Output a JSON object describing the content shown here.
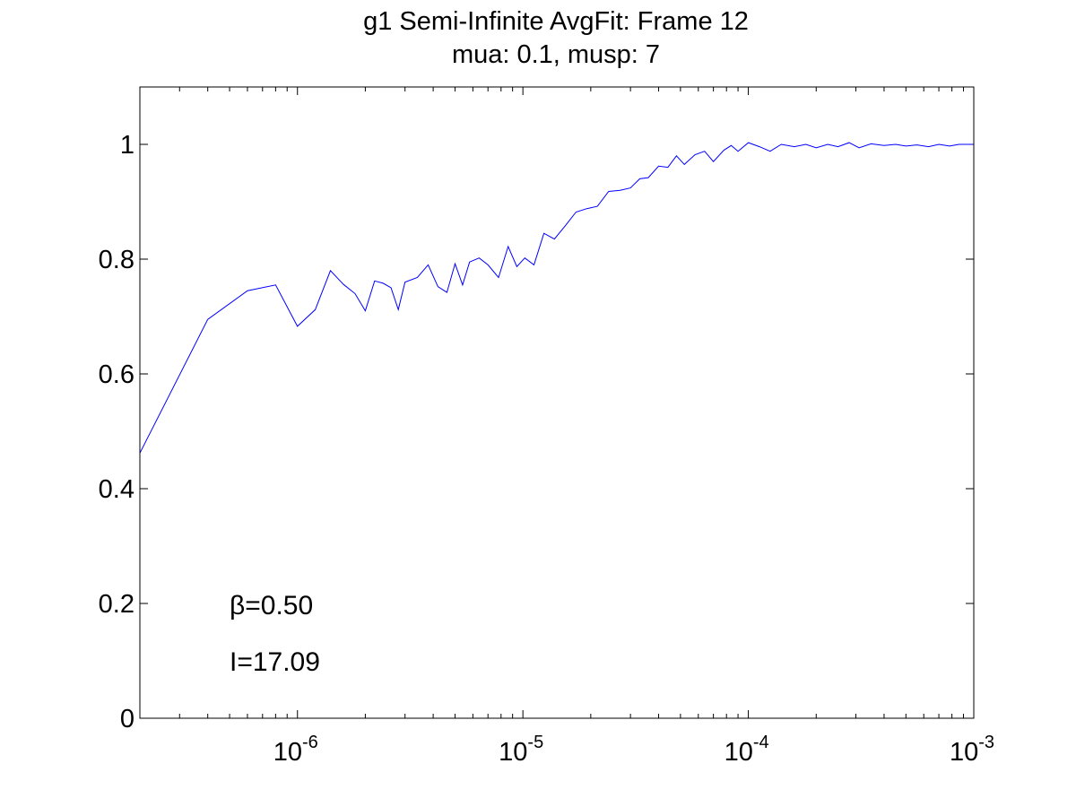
{
  "chart_data": {
    "type": "line",
    "title": "g1 Semi-Infinite AvgFit: Frame 12",
    "subtitle": "mua: 0.1, musp: 7",
    "xlabel": "",
    "ylabel": "",
    "xscale": "log",
    "xlim": [
      2e-07,
      0.001
    ],
    "ylim": [
      0,
      1.1
    ],
    "grid": false,
    "legend": "none",
    "line_color": "#0000ff",
    "x_ticks": [
      {
        "value": 1e-06,
        "base": "10",
        "exp": "-6"
      },
      {
        "value": 1e-05,
        "base": "10",
        "exp": "-5"
      },
      {
        "value": 0.0001,
        "base": "10",
        "exp": "-4"
      },
      {
        "value": 0.001,
        "base": "10",
        "exp": "-3"
      }
    ],
    "y_ticks": [
      {
        "value": 0,
        "label": "0"
      },
      {
        "value": 0.2,
        "label": "0.2"
      },
      {
        "value": 0.4,
        "label": "0.4"
      },
      {
        "value": 0.6,
        "label": "0.6"
      },
      {
        "value": 0.8,
        "label": "0.8"
      },
      {
        "value": 1,
        "label": "1"
      }
    ],
    "annotations": {
      "beta": {
        "symbol": "β",
        "text": "=0.50"
      },
      "intensity": {
        "text": "I=17.09"
      }
    },
    "series": [
      {
        "x": [
          2e-07,
          4e-07,
          6e-07,
          8e-07,
          1e-06,
          1.2e-06,
          1.4e-06,
          1.6e-06,
          1.8e-06,
          2e-06,
          2.2e-06,
          2.4e-06,
          2.6e-06,
          2.8e-06,
          3e-06,
          3.4e-06,
          3.8e-06,
          4.2e-06,
          4.6e-06,
          5e-06,
          5.4e-06,
          5.8e-06,
          6.4e-06,
          7e-06,
          7.8e-06,
          8.6e-06,
          9.4e-06,
          1.02e-05,
          1.12e-05,
          1.24e-05,
          1.38e-05,
          1.54e-05,
          1.72e-05,
          1.92e-05,
          2.14e-05,
          2.4e-05,
          2.7e-05,
          3e-05,
          3.3e-05,
          3.6e-05,
          4e-05,
          4.4e-05,
          4.8e-05,
          5.2e-05,
          5.8e-05,
          6.4e-05,
          7e-05,
          7.8e-05,
          8.4e-05,
          9e-05,
          0.0001,
          0.000112,
          0.000125,
          0.00014,
          0.00016,
          0.00018,
          0.0002,
          0.000225,
          0.00025,
          0.00028,
          0.00031,
          0.00035,
          0.0004,
          0.00045,
          0.0005,
          0.00056,
          0.00063,
          0.0007,
          0.00078,
          0.00086,
          0.001
        ],
        "y": [
          0.462,
          0.695,
          0.745,
          0.755,
          0.683,
          0.712,
          0.78,
          0.756,
          0.74,
          0.71,
          0.762,
          0.758,
          0.75,
          0.712,
          0.76,
          0.768,
          0.79,
          0.752,
          0.742,
          0.792,
          0.755,
          0.795,
          0.802,
          0.79,
          0.768,
          0.822,
          0.787,
          0.802,
          0.79,
          0.845,
          0.835,
          0.858,
          0.882,
          0.888,
          0.892,
          0.918,
          0.92,
          0.924,
          0.94,
          0.942,
          0.962,
          0.96,
          0.98,
          0.965,
          0.982,
          0.988,
          0.97,
          0.99,
          0.998,
          0.988,
          1.003,
          0.996,
          0.988,
          1.0,
          0.996,
          1.0,
          0.994,
          1.0,
          0.996,
          1.003,
          0.994,
          1.001,
          0.998,
          1.0,
          0.997,
          0.999,
          0.996,
          1.0,
          0.997,
          1.0,
          1.0
        ]
      }
    ]
  }
}
